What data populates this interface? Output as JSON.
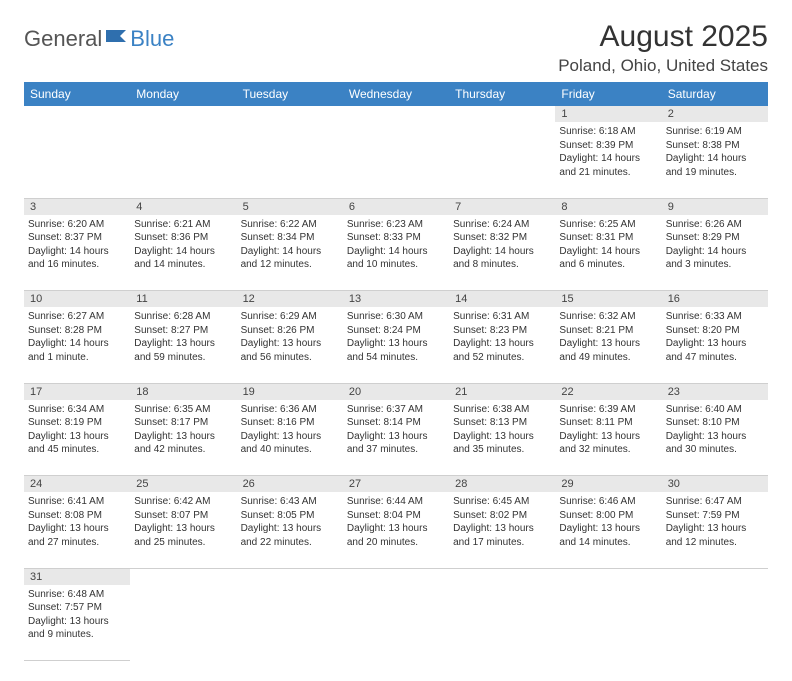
{
  "logo": {
    "part1": "General",
    "part2": "Blue",
    "icon_color": "#2f6fae"
  },
  "title": "August 2025",
  "location": "Poland, Ohio, United States",
  "colors": {
    "header_bg": "#3b82c4",
    "header_fg": "#ffffff",
    "daynum_bg": "#e8e8e8",
    "grid_line": "#cfcfcf",
    "text": "#333333"
  },
  "weekdays": [
    "Sunday",
    "Monday",
    "Tuesday",
    "Wednesday",
    "Thursday",
    "Friday",
    "Saturday"
  ],
  "weeks": [
    {
      "nums": [
        "",
        "",
        "",
        "",
        "",
        "1",
        "2"
      ],
      "cells": [
        null,
        null,
        null,
        null,
        null,
        {
          "sr": "Sunrise: 6:18 AM",
          "ss": "Sunset: 8:39 PM",
          "d1": "Daylight: 14 hours",
          "d2": "and 21 minutes."
        },
        {
          "sr": "Sunrise: 6:19 AM",
          "ss": "Sunset: 8:38 PM",
          "d1": "Daylight: 14 hours",
          "d2": "and 19 minutes."
        }
      ]
    },
    {
      "nums": [
        "3",
        "4",
        "5",
        "6",
        "7",
        "8",
        "9"
      ],
      "cells": [
        {
          "sr": "Sunrise: 6:20 AM",
          "ss": "Sunset: 8:37 PM",
          "d1": "Daylight: 14 hours",
          "d2": "and 16 minutes."
        },
        {
          "sr": "Sunrise: 6:21 AM",
          "ss": "Sunset: 8:36 PM",
          "d1": "Daylight: 14 hours",
          "d2": "and 14 minutes."
        },
        {
          "sr": "Sunrise: 6:22 AM",
          "ss": "Sunset: 8:34 PM",
          "d1": "Daylight: 14 hours",
          "d2": "and 12 minutes."
        },
        {
          "sr": "Sunrise: 6:23 AM",
          "ss": "Sunset: 8:33 PM",
          "d1": "Daylight: 14 hours",
          "d2": "and 10 minutes."
        },
        {
          "sr": "Sunrise: 6:24 AM",
          "ss": "Sunset: 8:32 PM",
          "d1": "Daylight: 14 hours",
          "d2": "and 8 minutes."
        },
        {
          "sr": "Sunrise: 6:25 AM",
          "ss": "Sunset: 8:31 PM",
          "d1": "Daylight: 14 hours",
          "d2": "and 6 minutes."
        },
        {
          "sr": "Sunrise: 6:26 AM",
          "ss": "Sunset: 8:29 PM",
          "d1": "Daylight: 14 hours",
          "d2": "and 3 minutes."
        }
      ]
    },
    {
      "nums": [
        "10",
        "11",
        "12",
        "13",
        "14",
        "15",
        "16"
      ],
      "cells": [
        {
          "sr": "Sunrise: 6:27 AM",
          "ss": "Sunset: 8:28 PM",
          "d1": "Daylight: 14 hours",
          "d2": "and 1 minute."
        },
        {
          "sr": "Sunrise: 6:28 AM",
          "ss": "Sunset: 8:27 PM",
          "d1": "Daylight: 13 hours",
          "d2": "and 59 minutes."
        },
        {
          "sr": "Sunrise: 6:29 AM",
          "ss": "Sunset: 8:26 PM",
          "d1": "Daylight: 13 hours",
          "d2": "and 56 minutes."
        },
        {
          "sr": "Sunrise: 6:30 AM",
          "ss": "Sunset: 8:24 PM",
          "d1": "Daylight: 13 hours",
          "d2": "and 54 minutes."
        },
        {
          "sr": "Sunrise: 6:31 AM",
          "ss": "Sunset: 8:23 PM",
          "d1": "Daylight: 13 hours",
          "d2": "and 52 minutes."
        },
        {
          "sr": "Sunrise: 6:32 AM",
          "ss": "Sunset: 8:21 PM",
          "d1": "Daylight: 13 hours",
          "d2": "and 49 minutes."
        },
        {
          "sr": "Sunrise: 6:33 AM",
          "ss": "Sunset: 8:20 PM",
          "d1": "Daylight: 13 hours",
          "d2": "and 47 minutes."
        }
      ]
    },
    {
      "nums": [
        "17",
        "18",
        "19",
        "20",
        "21",
        "22",
        "23"
      ],
      "cells": [
        {
          "sr": "Sunrise: 6:34 AM",
          "ss": "Sunset: 8:19 PM",
          "d1": "Daylight: 13 hours",
          "d2": "and 45 minutes."
        },
        {
          "sr": "Sunrise: 6:35 AM",
          "ss": "Sunset: 8:17 PM",
          "d1": "Daylight: 13 hours",
          "d2": "and 42 minutes."
        },
        {
          "sr": "Sunrise: 6:36 AM",
          "ss": "Sunset: 8:16 PM",
          "d1": "Daylight: 13 hours",
          "d2": "and 40 minutes."
        },
        {
          "sr": "Sunrise: 6:37 AM",
          "ss": "Sunset: 8:14 PM",
          "d1": "Daylight: 13 hours",
          "d2": "and 37 minutes."
        },
        {
          "sr": "Sunrise: 6:38 AM",
          "ss": "Sunset: 8:13 PM",
          "d1": "Daylight: 13 hours",
          "d2": "and 35 minutes."
        },
        {
          "sr": "Sunrise: 6:39 AM",
          "ss": "Sunset: 8:11 PM",
          "d1": "Daylight: 13 hours",
          "d2": "and 32 minutes."
        },
        {
          "sr": "Sunrise: 6:40 AM",
          "ss": "Sunset: 8:10 PM",
          "d1": "Daylight: 13 hours",
          "d2": "and 30 minutes."
        }
      ]
    },
    {
      "nums": [
        "24",
        "25",
        "26",
        "27",
        "28",
        "29",
        "30"
      ],
      "cells": [
        {
          "sr": "Sunrise: 6:41 AM",
          "ss": "Sunset: 8:08 PM",
          "d1": "Daylight: 13 hours",
          "d2": "and 27 minutes."
        },
        {
          "sr": "Sunrise: 6:42 AM",
          "ss": "Sunset: 8:07 PM",
          "d1": "Daylight: 13 hours",
          "d2": "and 25 minutes."
        },
        {
          "sr": "Sunrise: 6:43 AM",
          "ss": "Sunset: 8:05 PM",
          "d1": "Daylight: 13 hours",
          "d2": "and 22 minutes."
        },
        {
          "sr": "Sunrise: 6:44 AM",
          "ss": "Sunset: 8:04 PM",
          "d1": "Daylight: 13 hours",
          "d2": "and 20 minutes."
        },
        {
          "sr": "Sunrise: 6:45 AM",
          "ss": "Sunset: 8:02 PM",
          "d1": "Daylight: 13 hours",
          "d2": "and 17 minutes."
        },
        {
          "sr": "Sunrise: 6:46 AM",
          "ss": "Sunset: 8:00 PM",
          "d1": "Daylight: 13 hours",
          "d2": "and 14 minutes."
        },
        {
          "sr": "Sunrise: 6:47 AM",
          "ss": "Sunset: 7:59 PM",
          "d1": "Daylight: 13 hours",
          "d2": "and 12 minutes."
        }
      ]
    },
    {
      "nums": [
        "31",
        "",
        "",
        "",
        "",
        "",
        ""
      ],
      "cells": [
        {
          "sr": "Sunrise: 6:48 AM",
          "ss": "Sunset: 7:57 PM",
          "d1": "Daylight: 13 hours",
          "d2": "and 9 minutes."
        },
        null,
        null,
        null,
        null,
        null,
        null
      ]
    }
  ]
}
